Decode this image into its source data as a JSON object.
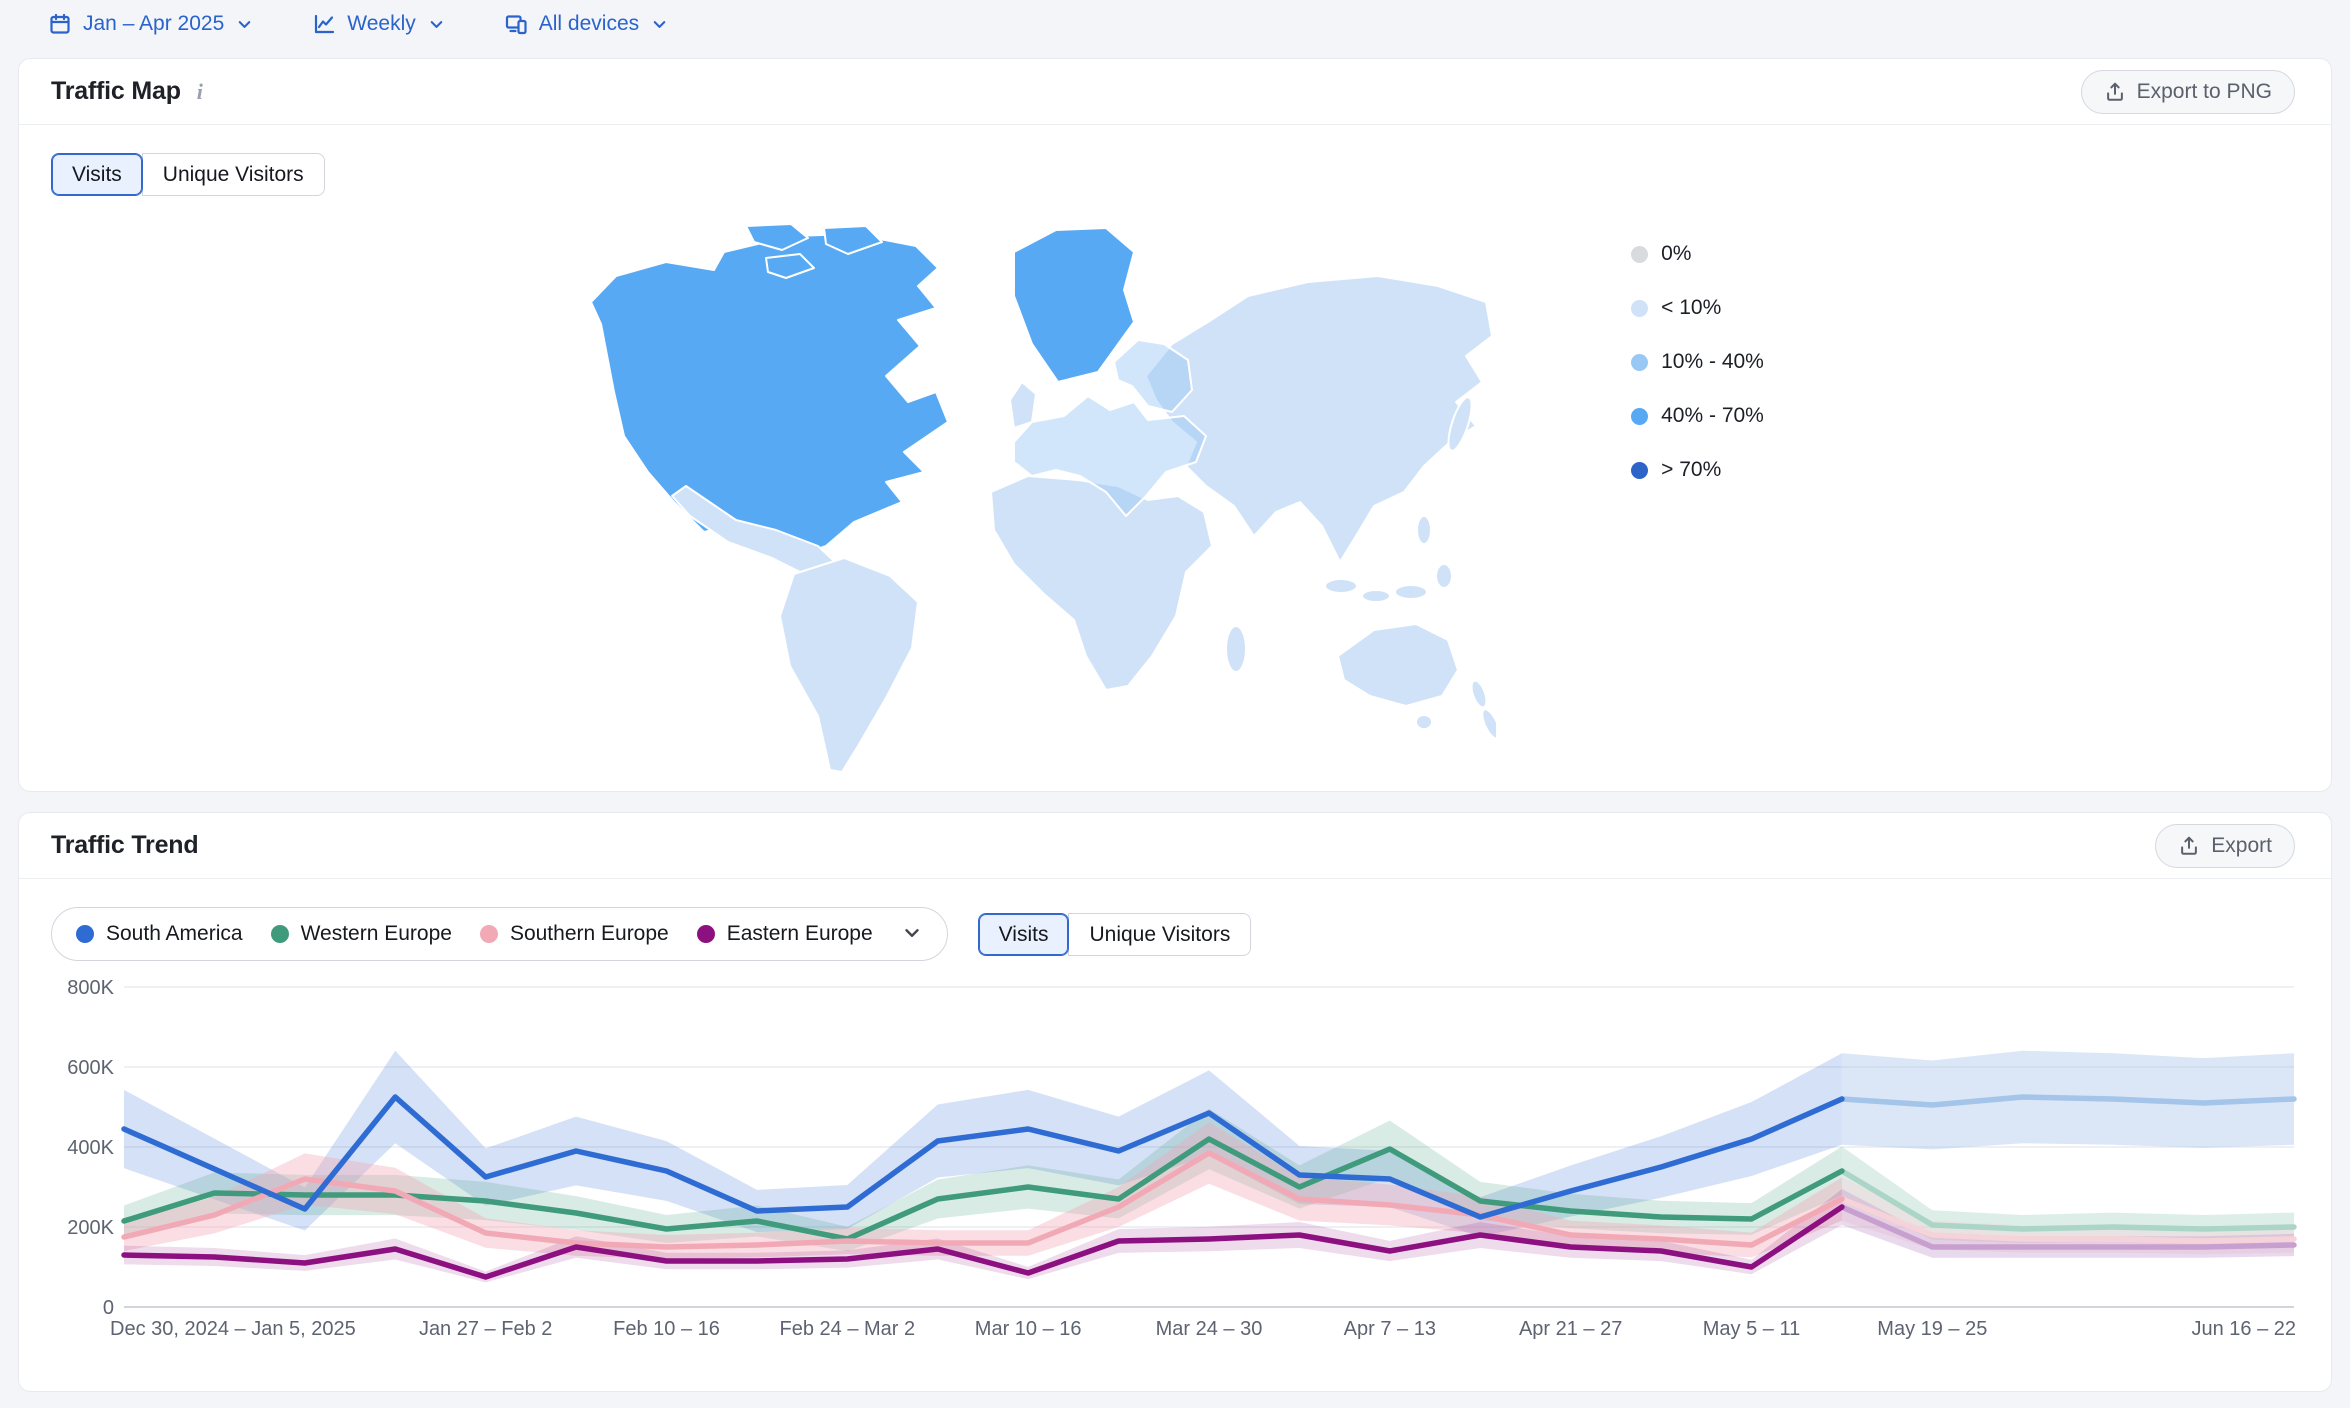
{
  "filter_bar": {
    "date_range_label": "Jan – Apr 2025",
    "granularity_label": "Weekly",
    "devices_label": "All devices"
  },
  "traffic_map": {
    "title": "Traffic Map",
    "export_button_label": "Export to PNG",
    "view_toggle": {
      "options": [
        "Visits",
        "Unique Visitors"
      ],
      "selected": "Visits"
    },
    "legend": [
      {
        "label": "0%",
        "color": "#d8dade"
      },
      {
        "label": "< 10%",
        "color": "#cfe2f8"
      },
      {
        "label": "10% - 40%",
        "color": "#9ac8f5"
      },
      {
        "label": "40% - 70%",
        "color": "#58a9f4"
      },
      {
        "label": "> 70%",
        "color": "#2e64c8"
      }
    ],
    "region_shading": {
      "north_america_and_greenland": "40% - 70%",
      "europe": "10% - 40%",
      "rest_of_world": "< 10%"
    }
  },
  "traffic_trend": {
    "title": "Traffic Trend",
    "export_button_label": "Export",
    "view_toggle": {
      "options": [
        "Visits",
        "Unique Visitors"
      ],
      "selected": "Visits"
    }
  },
  "chart_data": {
    "type": "line",
    "metric": "Visits",
    "unit": "thousands of visits per week",
    "ylim_k": [
      0,
      800
    ],
    "y_tick_labels": [
      "0",
      "200K",
      "400K",
      "600K",
      "800K"
    ],
    "weeks": 25,
    "forecast_start_index": 19,
    "x_tick_labels": [
      {
        "label": "Dec 30, 2024 – Jan 5, 2025",
        "week": 0
      },
      {
        "label": "Jan 27 – Feb 2",
        "week": 4
      },
      {
        "label": "Feb 10 – 16",
        "week": 6
      },
      {
        "label": "Feb 24 – Mar 2",
        "week": 8
      },
      {
        "label": "Mar 10 – 16",
        "week": 10
      },
      {
        "label": "Mar 24 – 30",
        "week": 12
      },
      {
        "label": "Apr 7 – 13",
        "week": 14
      },
      {
        "label": "Apr 21 – 27",
        "week": 16
      },
      {
        "label": "May 5 – 11",
        "week": 18
      },
      {
        "label": "May 19 – 25",
        "week": 20
      },
      {
        "label": "Jun 16 – 22",
        "week": 24
      }
    ],
    "series": [
      {
        "name": "South America",
        "color": "#2e6bd2",
        "forecast_color": "#a4c4e9",
        "band_pct": 0.22,
        "band_opacity": 0.2,
        "values_k": [
          445,
          345,
          245,
          525,
          325,
          390,
          340,
          240,
          250,
          415,
          445,
          390,
          485,
          330,
          320,
          225,
          290,
          350,
          420,
          520,
          505,
          525,
          520,
          510,
          520
        ]
      },
      {
        "name": "Western Europe",
        "color": "#3f9b7c",
        "forecast_color": "#abd5c6",
        "band_pct": 0.18,
        "band_opacity": 0.2,
        "values_k": [
          215,
          285,
          280,
          280,
          265,
          235,
          195,
          215,
          170,
          270,
          300,
          270,
          420,
          300,
          395,
          265,
          240,
          225,
          220,
          340,
          205,
          195,
          200,
          195,
          200
        ]
      },
      {
        "name": "Southern Europe",
        "color": "#f2a9b6",
        "forecast_color": "#f6d3d9",
        "band_pct": 0.2,
        "band_opacity": 0.38,
        "values_k": [
          175,
          230,
          320,
          290,
          185,
          160,
          150,
          155,
          165,
          160,
          160,
          250,
          385,
          270,
          255,
          230,
          180,
          170,
          155,
          270,
          180,
          170,
          170,
          165,
          170
        ]
      },
      {
        "name": "Eastern Europe",
        "color": "#8c1080",
        "forecast_color": "#c7a0d0",
        "band_pct": 0.18,
        "band_opacity": 0.15,
        "values_k": [
          130,
          125,
          110,
          145,
          75,
          150,
          115,
          115,
          120,
          145,
          85,
          165,
          170,
          180,
          140,
          180,
          150,
          140,
          100,
          250,
          150,
          150,
          150,
          150,
          155
        ]
      }
    ]
  }
}
